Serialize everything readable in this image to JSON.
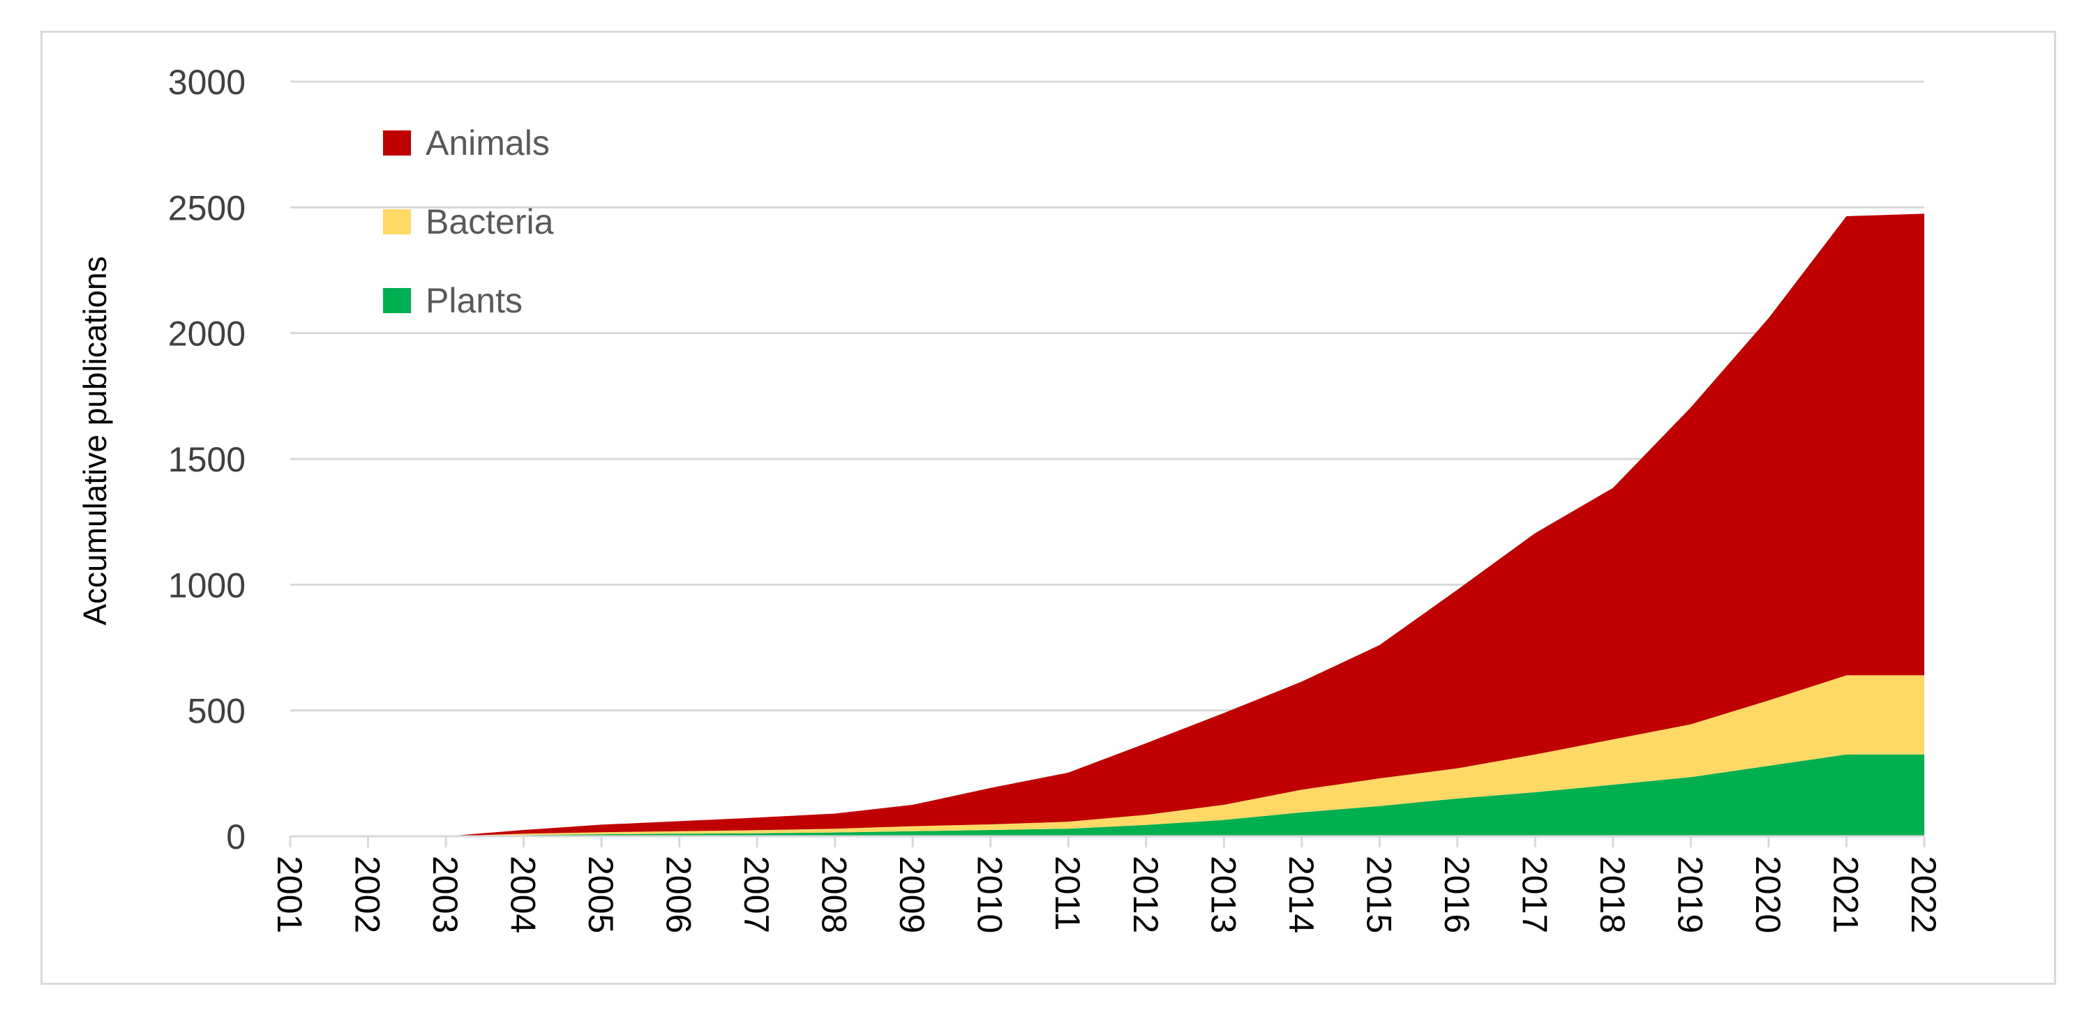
{
  "chart_data": {
    "type": "area",
    "stacked": true,
    "title": "",
    "xlabel": "",
    "ylabel": "Accumulative publications",
    "ylim": [
      0,
      3000
    ],
    "yticks": [
      0,
      500,
      1000,
      1500,
      2000,
      2500,
      3000
    ],
    "grid": true,
    "legend_position": "top-left",
    "x": [
      "2001",
      "2002",
      "2003",
      "2004",
      "2005",
      "2006",
      "2007",
      "2008",
      "2009",
      "2010",
      "2011",
      "2012",
      "2013",
      "2014",
      "2015",
      "2016",
      "2017",
      "2018",
      "2019",
      "2020",
      "2021",
      "2022"
    ],
    "series": [
      {
        "name": "Plants",
        "color": "#00b050",
        "values": [
          0,
          0,
          0,
          5,
          8,
          10,
          12,
          15,
          20,
          25,
          30,
          45,
          65,
          95,
          120,
          150,
          175,
          205,
          235,
          280,
          325,
          325
        ]
      },
      {
        "name": "Bacteria",
        "color": "#ffd966",
        "values": [
          0,
          0,
          0,
          5,
          8,
          10,
          12,
          15,
          20,
          22,
          28,
          40,
          60,
          90,
          110,
          120,
          150,
          180,
          210,
          260,
          315,
          315
        ]
      },
      {
        "name": "Animals",
        "color": "#c00000",
        "values": [
          0,
          0,
          0,
          15,
          30,
          40,
          50,
          60,
          85,
          145,
          195,
          285,
          365,
          430,
          530,
          710,
          880,
          1000,
          1260,
          1520,
          1825,
          1835
        ]
      }
    ],
    "legend_order": [
      "Animals",
      "Bacteria",
      "Plants"
    ]
  }
}
